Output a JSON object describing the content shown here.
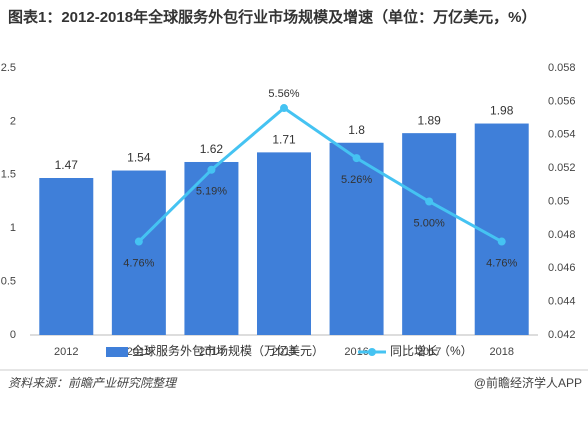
{
  "chart_data": {
    "type": "bar_line",
    "title": "图表1：2012-2018年全球服务外包行业市场规模及增速（单位：万亿美元，%）",
    "categories": [
      "2012",
      "2013",
      "2014",
      "2015",
      "2016",
      "2017",
      "2018"
    ],
    "series": [
      {
        "name": "全球服务外包市场规模（万亿美元）",
        "type": "bar",
        "color": "#3f7fd9",
        "values": [
          1.47,
          1.54,
          1.62,
          1.71,
          1.8,
          1.89,
          1.98
        ]
      },
      {
        "name": "同比增长（%）",
        "type": "line",
        "axis": "y2",
        "color": "#45c3f2",
        "values": [
          null,
          0.0476,
          0.0519,
          0.0556,
          0.0526,
          0.05,
          0.0476
        ],
        "value_labels": [
          null,
          "4.76%",
          "5.19%",
          "5.56%",
          "5.26%",
          "5.00%",
          "4.76%"
        ]
      }
    ],
    "ylim": [
      0,
      2.5
    ],
    "yticks": [
      0,
      0.5,
      1,
      1.5,
      2,
      2.5
    ],
    "y2lim": [
      0.042,
      0.058
    ],
    "y2ticks": [
      0.042,
      0.044,
      0.046,
      0.048,
      0.05,
      0.052,
      0.054,
      0.056,
      0.058
    ],
    "source": "资料来源：前瞻产业研究院整理",
    "credit": "@前瞻经济学人APP"
  }
}
